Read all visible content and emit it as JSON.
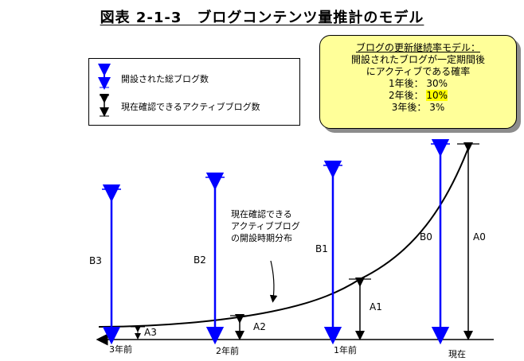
{
  "title": "図表 2-1-3　ブログコンテンツ量推計のモデル",
  "legend": {
    "total_label": "開設された総ブログ数",
    "active_label": "現在確認できるアクティブブログ数"
  },
  "model_box": {
    "line1": "ブログの更新継続率モデル：",
    "line2": "開設されたブログが一定期間後",
    "line3": "にアクティブである確率",
    "rates": [
      {
        "prefix": "1年後： ",
        "value": "30%"
      },
      {
        "prefix": "2年後： ",
        "value": "10%"
      },
      {
        "prefix": "3年後：  ",
        "value": "3%"
      }
    ]
  },
  "annotation": [
    "現在確認できる",
    "アクティブブログ",
    "の開設時期分布"
  ],
  "axis_labels": [
    "3年前",
    "2年前",
    "1年前",
    "現在"
  ],
  "total_labels": [
    "B3",
    "B2",
    "B1",
    "B0"
  ],
  "active_labels": [
    "A3",
    "A2",
    "A1",
    "A0"
  ],
  "colors": {
    "total_arrow": "#0000ff",
    "active_arrow": "#000000",
    "model_bg": "#ffff99",
    "highlight": "#ffff00"
  }
}
